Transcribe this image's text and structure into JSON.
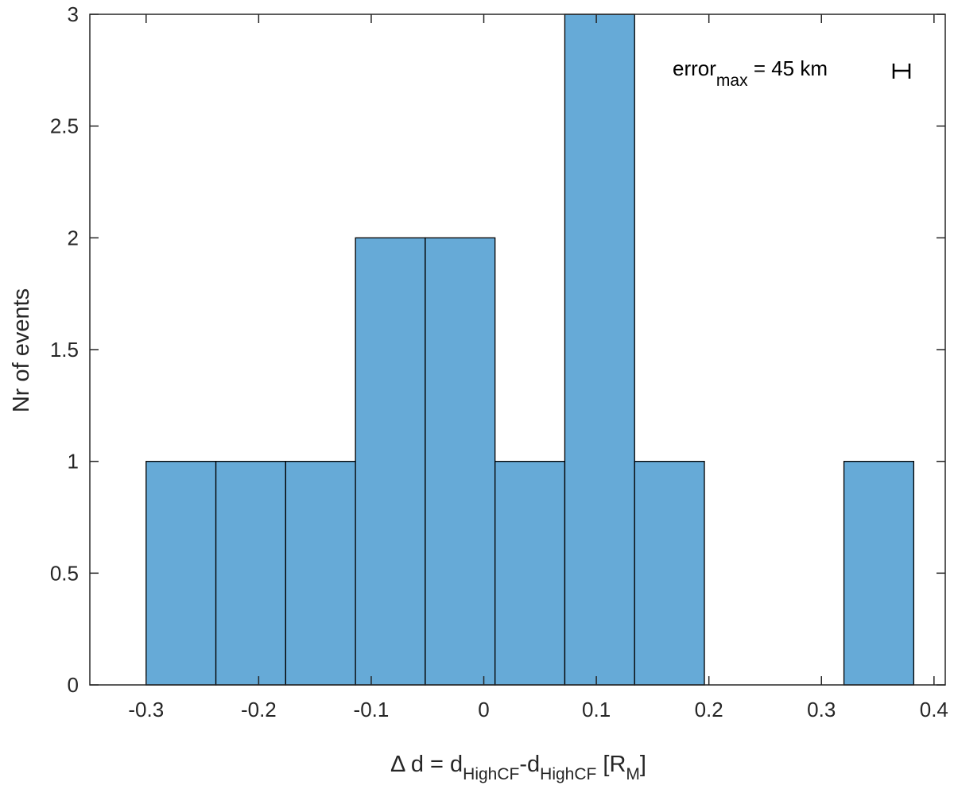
{
  "chart_data": {
    "type": "bar",
    "title": "",
    "xlabel": {
      "prefix": "Δ d = d",
      "sub1": "HighCF",
      "mid": "-d",
      "sub2": "HighCF",
      "unit_open": " [R",
      "unit_sub": "M",
      "unit_close": "]"
    },
    "ylabel": "Nr of events",
    "xlim": [
      -0.35,
      0.41
    ],
    "ylim": [
      0,
      3
    ],
    "xticks": [
      -0.3,
      -0.2,
      -0.1,
      0,
      0.1,
      0.2,
      0.3,
      0.4
    ],
    "xtick_labels": [
      "-0.3",
      "-0.2",
      "-0.1",
      "0",
      "0.1",
      "0.2",
      "0.3",
      "0.4"
    ],
    "yticks": [
      0,
      0.5,
      1,
      1.5,
      2,
      2.5,
      3
    ],
    "ytick_labels": [
      "0",
      "0.5",
      "1",
      "1.5",
      "2",
      "2.5",
      "3"
    ],
    "bin_edges": [
      -0.3,
      -0.238,
      -0.176,
      -0.114,
      -0.052,
      0.01,
      0.072,
      0.134,
      0.196,
      0.258,
      0.32,
      0.382
    ],
    "values": [
      1,
      1,
      1,
      2,
      2,
      1,
      3,
      1,
      0,
      0,
      1
    ],
    "bar_color": "#66aad7",
    "edge_color": "#000000",
    "annotation": {
      "text": "error",
      "sub": "max",
      "rest": " = 45 km"
    },
    "grid": false
  }
}
